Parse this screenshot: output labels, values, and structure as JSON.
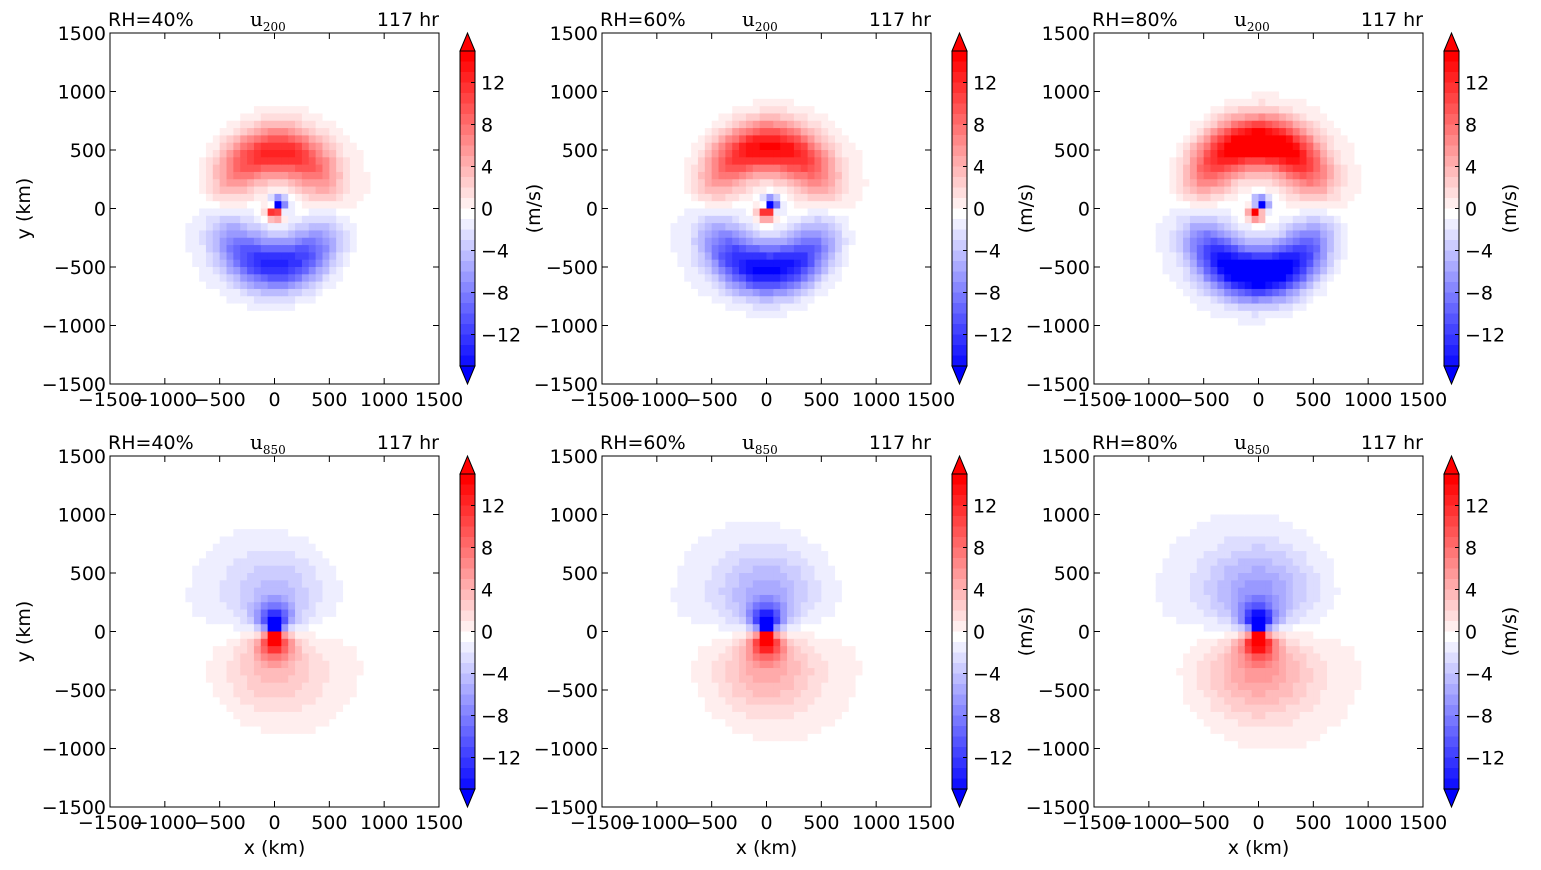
{
  "colors": {
    "neg_strong": "#0000ff",
    "pos_strong": "#ff0000",
    "neutral": "#ffffff"
  },
  "chart_data": [
    {
      "type": "heatmap",
      "rh_label": "RH=40%",
      "var_base": "u",
      "var_sub": "200",
      "time_label": "117 hr",
      "xlabel": "",
      "ylabel": "y (km)",
      "cbar_label": "(m/s)",
      "xlim": [
        -1500,
        1500
      ],
      "ylim": [
        -1500,
        1500
      ],
      "xticks": [
        "−1500",
        "−1000",
        "−500",
        "0",
        "500",
        "1000",
        "1500"
      ],
      "yticks": [
        "1500",
        "1000",
        "500",
        "0",
        "−500",
        "−1000",
        "−1500"
      ],
      "cbar_range": [
        -15,
        15
      ],
      "cbar_extend": "both",
      "cbar_ticks": [
        "12",
        "8",
        "4",
        "0",
        "−4",
        "−8",
        "−12"
      ],
      "features": {
        "ring_amp": 13,
        "ring_radius": 480,
        "core_amp": 15,
        "vortex_offset": [
          20,
          0
        ]
      }
    },
    {
      "type": "heatmap",
      "rh_label": "RH=60%",
      "var_base": "u",
      "var_sub": "200",
      "time_label": "117 hr",
      "xlabel": "",
      "ylabel": "",
      "cbar_label": "(m/s)",
      "xlim": [
        -1500,
        1500
      ],
      "ylim": [
        -1500,
        1500
      ],
      "xticks": [
        "−1500",
        "−1000",
        "−500",
        "0",
        "500",
        "1000",
        "1500"
      ],
      "yticks": [
        "1500",
        "1000",
        "500",
        "0",
        "−500",
        "−1000",
        "−1500"
      ],
      "cbar_range": [
        -15,
        15
      ],
      "cbar_extend": "both",
      "cbar_ticks": [
        "12",
        "8",
        "4",
        "0",
        "−4",
        "−8",
        "−12"
      ],
      "features": {
        "ring_amp": 15,
        "ring_radius": 520,
        "core_amp": 15,
        "vortex_offset": [
          20,
          0
        ]
      }
    },
    {
      "type": "heatmap",
      "rh_label": "RH=80%",
      "var_base": "u",
      "var_sub": "200",
      "time_label": "117 hr",
      "xlabel": "",
      "ylabel": "",
      "cbar_label": "(m/s)",
      "xlim": [
        -1500,
        1500
      ],
      "ylim": [
        -1500,
        1500
      ],
      "xticks": [
        "−1500",
        "−1000",
        "−500",
        "0",
        "500",
        "1000",
        "1500"
      ],
      "yticks": [
        "1500",
        "1000",
        "500",
        "0",
        "−500",
        "−1000",
        "−1500"
      ],
      "cbar_range": [
        -15,
        15
      ],
      "cbar_extend": "both",
      "cbar_ticks": [
        "12",
        "8",
        "4",
        "0",
        "−4",
        "−8",
        "−12"
      ],
      "features": {
        "ring_amp": 18,
        "ring_radius": 560,
        "core_amp": 15,
        "vortex_offset": [
          0,
          0
        ]
      }
    },
    {
      "type": "heatmap",
      "rh_label": "RH=40%",
      "var_base": "u",
      "var_sub": "850",
      "time_label": "117 hr",
      "xlabel": "x (km)",
      "ylabel": "y (km)",
      "cbar_label": "",
      "xlim": [
        -1500,
        1500
      ],
      "ylim": [
        -1500,
        1500
      ],
      "xticks": [
        "−1500",
        "−1000",
        "−500",
        "0",
        "500",
        "1000",
        "1500"
      ],
      "yticks": [
        "1500",
        "1000",
        "500",
        "0",
        "−500",
        "−1000",
        "−1500"
      ],
      "cbar_range": [
        -15,
        15
      ],
      "cbar_extend": "both",
      "cbar_ticks": [
        "12",
        "8",
        "4",
        "0",
        "−4",
        "−8",
        "−12"
      ],
      "features": {
        "ring_amp": 4,
        "ring_radius": 400,
        "core_amp": 15,
        "vortex_offset": [
          0,
          0
        ]
      }
    },
    {
      "type": "heatmap",
      "rh_label": "RH=60%",
      "var_base": "u",
      "var_sub": "850",
      "time_label": "117 hr",
      "xlabel": "x (km)",
      "ylabel": "",
      "cbar_label": "(m/s)",
      "xlim": [
        -1500,
        1500
      ],
      "ylim": [
        -1500,
        1500
      ],
      "xticks": [
        "−1500",
        "−1000",
        "−500",
        "0",
        "500",
        "1000",
        "1500"
      ],
      "yticks": [
        "1500",
        "1000",
        "500",
        "0",
        "−500",
        "−1000",
        "−1500"
      ],
      "cbar_range": [
        -15,
        15
      ],
      "cbar_extend": "both",
      "cbar_ticks": [
        "12",
        "8",
        "4",
        "0",
        "−4",
        "−8",
        "−12"
      ],
      "features": {
        "ring_amp": 5,
        "ring_radius": 420,
        "core_amp": 15,
        "vortex_offset": [
          0,
          0
        ]
      }
    },
    {
      "type": "heatmap",
      "rh_label": "RH=80%",
      "var_base": "u",
      "var_sub": "850",
      "time_label": "117 hr",
      "xlabel": "x (km)",
      "ylabel": "",
      "cbar_label": "(m/s)",
      "xlim": [
        -1500,
        1500
      ],
      "ylim": [
        -1500,
        1500
      ],
      "xticks": [
        "−1500",
        "−1000",
        "−500",
        "0",
        "500",
        "1000",
        "1500"
      ],
      "yticks": [
        "1500",
        "1000",
        "500",
        "0",
        "−500",
        "−1000",
        "−1500"
      ],
      "cbar_range": [
        -15,
        15
      ],
      "cbar_extend": "both",
      "cbar_ticks": [
        "12",
        "8",
        "4",
        "0",
        "−4",
        "−8",
        "−12"
      ],
      "features": {
        "ring_amp": 6,
        "ring_radius": 450,
        "core_amp": 15,
        "vortex_offset": [
          0,
          0
        ]
      }
    }
  ]
}
